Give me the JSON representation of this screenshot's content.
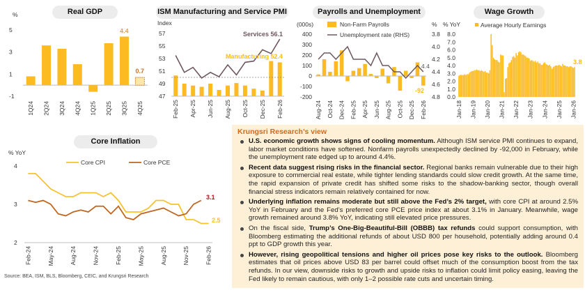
{
  "colors": {
    "bar": "#fbbb21",
    "bar_forecast": "#fde7a8",
    "services": "#6e5860",
    "unemployment": "#6e5860",
    "core_cpi": "#f8c22c",
    "core_pce": "#c0651e",
    "label_orange": "#e9a23b",
    "label_dark_orange": "#c8702a",
    "label_red": "#b0161b",
    "panel": "#fdf0d6",
    "heading": "#d2691e"
  },
  "chart_data": [
    {
      "id": "gdp",
      "type": "bar",
      "title": "Real GDP",
      "ylabel": "%",
      "ylim": [
        -1,
        5
      ],
      "yticks": [
        "-1",
        "1",
        "3",
        "5"
      ],
      "ytick_values": [
        -1,
        1,
        3,
        5
      ],
      "categories": [
        "1Q24",
        "2Q24",
        "3Q24",
        "4Q24",
        "1Q25",
        "2Q25",
        "3Q25",
        "4Q25"
      ],
      "values": [
        0.8,
        3.6,
        3.3,
        1.9,
        -0.6,
        3.8,
        4.4,
        0.7
      ],
      "forecast_index": 7,
      "annotations": [
        {
          "text": "4.4",
          "index": 6
        },
        {
          "text": "0.7",
          "index": 7
        }
      ]
    },
    {
      "id": "pmi",
      "type": "bar+line",
      "title": "ISM Manufacturing and Service PMI",
      "ylabel": "Index",
      "ylim": [
        47,
        57
      ],
      "yticks": [
        "47",
        "49",
        "51",
        "53",
        "55",
        "57"
      ],
      "ytick_values": [
        47,
        49,
        51,
        53,
        55,
        57
      ],
      "reference_line": 50,
      "categories": [
        "Feb-25",
        "Mar-25",
        "Apr-25",
        "May-25",
        "Jun-25",
        "Jul-25",
        "Aug-25",
        "Sep-25",
        "Oct-25",
        "Nov-25",
        "Dec-25",
        "Jan-26",
        "Feb-26"
      ],
      "x_tick_labels": [
        "Feb-25",
        "Apr-25",
        "Jun-25",
        "Aug-25",
        "Oct-25",
        "Dec-25",
        "Feb-26"
      ],
      "series": [
        {
          "name": "Manufacturing",
          "type": "bar",
          "values": [
            50.3,
            49.0,
            48.7,
            48.5,
            49.0,
            48.0,
            48.7,
            49.1,
            48.7,
            48.2,
            47.9,
            52.6,
            52.4
          ]
        },
        {
          "name": "Services",
          "type": "line",
          "values": [
            53.5,
            50.8,
            51.6,
            49.9,
            50.8,
            50.1,
            52.0,
            50.4,
            52.4,
            52.6,
            54.4,
            53.8,
            56.1
          ]
        }
      ],
      "annotations": [
        {
          "text": "Services 56.1"
        },
        {
          "text": "Manufacturing 52.4"
        }
      ]
    },
    {
      "id": "payrolls",
      "type": "bar+line",
      "title": "Payrolls and Unemployment",
      "ylabel": "(000s)",
      "y2label": "%",
      "ylim": [
        -200,
        400
      ],
      "yticks": [
        "-200",
        "-100",
        "0",
        "100",
        "200",
        "300",
        "400"
      ],
      "ytick_values": [
        -200,
        -100,
        0,
        100,
        200,
        300,
        400
      ],
      "y2lim": [
        3.8,
        4.8
      ],
      "y2_inverted": true,
      "y2ticks": [
        "3.8",
        "4.0",
        "4.2",
        "4.4",
        "4.6",
        "4.8"
      ],
      "y2tick_values": [
        3.8,
        4.0,
        4.2,
        4.4,
        4.6,
        4.8
      ],
      "categories": [
        "Aug-24",
        "Sep-24",
        "Oct-24",
        "Nov-24",
        "Dec-24",
        "Jan-25",
        "Feb-25",
        "Mar-25",
        "Apr-25",
        "May-25",
        "Jun-25",
        "Jul-25",
        "Aug-25",
        "Sep-25",
        "Oct-25",
        "Nov-25",
        "Dec-25",
        "Jan-26",
        "Feb-26"
      ],
      "x_tick_labels": [
        "Aug-24",
        "Oct-24",
        "Dec-24",
        "Feb-25",
        "Apr-25",
        "Jun-25",
        "Aug-25",
        "Oct-25",
        "Dec-25",
        "Feb-26"
      ],
      "series": [
        {
          "name": "Non-Farm Payrolls",
          "type": "bar",
          "values": [
            15,
            160,
            40,
            140,
            245,
            -50,
            50,
            75,
            115,
            20,
            -20,
            70,
            -70,
            85,
            -140,
            50,
            -20,
            130,
            -92
          ]
        },
        {
          "name": "Unemployment rate (RHS)",
          "type": "line",
          "axis": "right",
          "values": [
            4.2,
            4.1,
            4.1,
            4.2,
            4.1,
            4.0,
            4.2,
            4.2,
            4.2,
            4.3,
            4.1,
            4.3,
            4.3,
            4.4,
            4.4,
            4.5,
            4.4,
            4.3,
            4.4
          ]
        }
      ],
      "annotations": [
        {
          "text": "4.4"
        },
        {
          "text": "-92"
        }
      ]
    },
    {
      "id": "wage",
      "type": "bar",
      "title": "Wage Growth",
      "ylabel": "% YoY",
      "ylim": [
        0,
        8
      ],
      "yticks": [
        "0.0",
        "1.0",
        "2.0",
        "3.0",
        "4.0",
        "5.0",
        "6.0",
        "7.0",
        "8.0"
      ],
      "ytick_values": [
        0,
        1,
        2,
        3,
        4,
        5,
        6,
        7,
        8
      ],
      "x_tick_labels": [
        "Jan-18",
        "Jan-19",
        "Jan-20",
        "Jan-21",
        "Jan-22",
        "Jan-23",
        "Jan-24",
        "Jan-25",
        "Jan-26"
      ],
      "series": [
        {
          "name": "Average Hourly Earnings",
          "type": "bar",
          "values": [
            2.7,
            2.8,
            2.8,
            2.8,
            2.8,
            2.9,
            2.8,
            2.9,
            2.9,
            3.1,
            3.2,
            3.3,
            3.3,
            3.4,
            3.4,
            3.5,
            3.4,
            3.4,
            3.3,
            3.4,
            3.3,
            3.2,
            3.3,
            3.1,
            3.1,
            3.0,
            3.4,
            8.0,
            6.6,
            5.0,
            4.8,
            4.7,
            4.7,
            4.5,
            4.4,
            5.4,
            5.3,
            5.3,
            0.6,
            2.3,
            2.4,
            3.8,
            4.3,
            4.4,
            4.7,
            5.1,
            5.2,
            5.0,
            5.6,
            5.3,
            5.7,
            5.8,
            5.7,
            5.4,
            5.4,
            5.3,
            5.2,
            5.0,
            5.0,
            4.9,
            4.6,
            4.7,
            4.6,
            4.5,
            4.6,
            4.4,
            4.5,
            4.3,
            4.3,
            4.1,
            4.1,
            4.3,
            4.4,
            4.2,
            4.1,
            4.0,
            4.1,
            3.9,
            3.6,
            3.8,
            3.9,
            4.0,
            4.0,
            4.0,
            4.1,
            4.0,
            3.9,
            4.2,
            4.0,
            4.0,
            3.9,
            3.9,
            3.8,
            3.9,
            3.9,
            3.8,
            3.7,
            3.8
          ]
        }
      ],
      "annotations": [
        {
          "text": "3.8"
        }
      ]
    },
    {
      "id": "core",
      "type": "line",
      "title": "Core Inflation",
      "ylabel": "% YoY",
      "ylim": [
        2,
        4
      ],
      "yticks": [
        "2",
        "3",
        "4"
      ],
      "ytick_values": [
        2,
        3,
        4
      ],
      "x_tick_labels": [
        "Feb-24",
        "May-24",
        "Aug-24",
        "Nov-24",
        "Feb-25",
        "May-25",
        "Aug-25",
        "Nov-25",
        "Feb-26"
      ],
      "series": [
        {
          "name": "Core CPI",
          "values": [
            3.8,
            3.8,
            3.6,
            3.4,
            3.3,
            3.2,
            3.2,
            3.3,
            3.3,
            3.3,
            3.2,
            3.3,
            3.1,
            2.8,
            2.8,
            2.8,
            2.9,
            3.1,
            3.1,
            3.0,
            3.0,
            2.6,
            2.6,
            2.5,
            2.5
          ]
        },
        {
          "name": "Core PCE",
          "values": [
            3.1,
            3.05,
            3.1,
            3.0,
            2.75,
            2.7,
            2.8,
            2.85,
            2.8,
            2.95,
            2.95,
            2.75,
            2.95,
            2.65,
            2.6,
            2.75,
            2.8,
            2.85,
            2.9,
            2.8,
            2.7,
            2.75,
            3.0,
            3.1
          ]
        }
      ],
      "annotations": [
        {
          "text": "3.1"
        },
        {
          "text": "2.5"
        }
      ]
    }
  ],
  "view": {
    "heading": "Krungsri Research’s view",
    "items": [
      {
        "pre": "",
        "bold": "U.S. economic growth shows signs of cooling momentum.",
        "post": " Although ISM service PMI continues to expand, labor market conditions have softened. Nonfarm payrolls unexpectedly declined by -92,000 in February, while the unemployment rate edged up to around 4.4%."
      },
      {
        "pre": "",
        "bold": "Recent data suggest rising risks in the financial sector.",
        "post": " Regional banks remain vulnerable due to their high exposure to commercial real estate, while tighter lending standards could slow credit growth. At the same time, the rapid expansion of private credit has shifted some risks to the shadow-banking sector, though overall financial stress indicators remain relatively contained for now."
      },
      {
        "pre": "",
        "bold": "Underlying inflation remains moderate but still above the Fed’s 2% target,",
        "post": " with core CPI at around 2.5% YoY in February and the Fed’s preferred core PCE price index at about 3.1% in January. Meanwhile, wage growth remained around 3.8% YoY, indicating still elevated price pressures."
      },
      {
        "pre": "On the fiscal side, ",
        "bold": "Trump’s One-Big-Beautiful-Bill (OBBB) tax refunds",
        "post": " could support consumption, with Bloomberg estimating the additional refunds of about USD 800 per household, potentially adding around 0.4 ppt to GDP growth this year."
      },
      {
        "pre": "",
        "bold": "However, rising geopolitical tensions and higher oil prices pose key risks to the outlook.",
        "post": " Bloomberg estimates that oil prices above USD 83 per barrel could offset much of the consumption boost from the tax refunds. In our view, downside risks to growth and upside risks to inflation could limit policy easing, leaving the Fed likely to remain cautious, with only 1–2 possible rate cuts and uncertain timing."
      }
    ]
  },
  "source": "Source: BEA, ISM, BLS, Bloomberg, CEIC, and Krungsri Research"
}
